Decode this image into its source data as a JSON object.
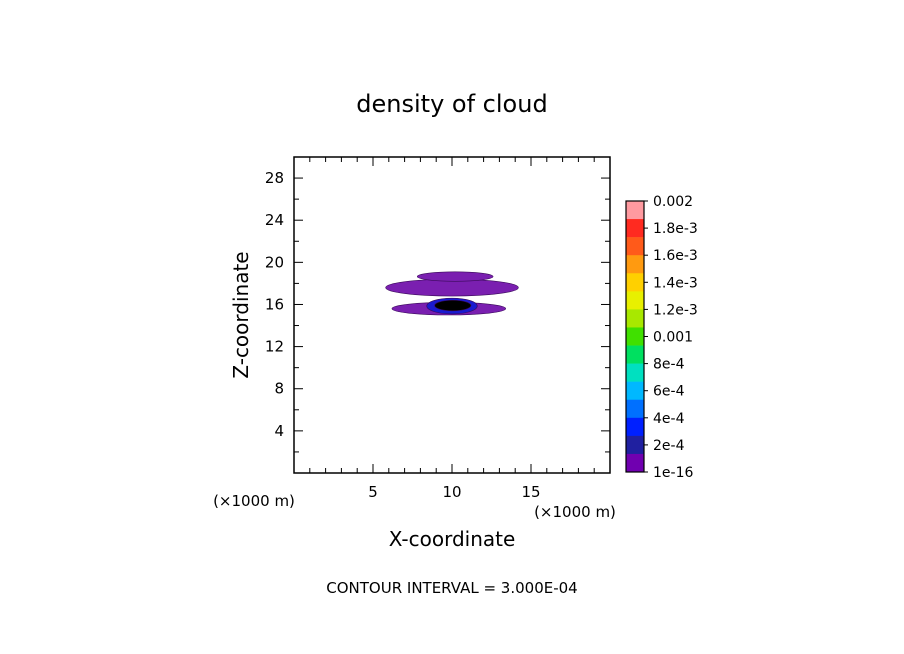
{
  "chart_data": {
    "type": "heatmap",
    "title": "density of cloud",
    "xlabel": "X-coordinate",
    "ylabel": "Z-coordinate",
    "x_unit_label": "(×1000 m)",
    "y_unit_label": "(×1000 m)",
    "xlim": [
      0,
      20
    ],
    "ylim": [
      0,
      30
    ],
    "x_ticks": [
      5,
      10,
      15
    ],
    "y_ticks": [
      4,
      8,
      12,
      16,
      20,
      24,
      28
    ],
    "footer": "CONTOUR INTERVAL = 3.000E-04",
    "colorbar": {
      "labels": [
        "0.002",
        "1.8e-3",
        "1.6e-3",
        "1.4e-3",
        "1.2e-3",
        "0.001",
        "8e-4",
        "6e-4",
        "4e-4",
        "2e-4",
        "1e-16"
      ],
      "colors": [
        "#ff9aa0",
        "#ff2a20",
        "#ff5a1a",
        "#ff9a10",
        "#ffd000",
        "#e8f000",
        "#a8e800",
        "#40e000",
        "#00e060",
        "#00e0c0",
        "#00b8ff",
        "#0070ff",
        "#0020ff",
        "#2020a0",
        "#7000b0"
      ]
    },
    "regions": [
      {
        "level": "1e-16",
        "color": "#7a1fb0",
        "x": [
          5.8,
          14.2
        ],
        "z": [
          16.8,
          18.4
        ]
      },
      {
        "level": "1e-16",
        "color": "#7a1fb0",
        "x": [
          7.8,
          12.6
        ],
        "z": [
          18.2,
          19.1
        ]
      },
      {
        "level": "1e-16",
        "color": "#7a1fb0",
        "x": [
          6.2,
          13.4
        ],
        "z": [
          15.0,
          16.2
        ]
      },
      {
        "level": "2e-4",
        "color": "#1a1ad0",
        "x": [
          8.4,
          11.6
        ],
        "z": [
          15.1,
          16.6
        ]
      },
      {
        "level": "4e-4",
        "color": "#000000",
        "x": [
          8.9,
          11.2
        ],
        "z": [
          15.4,
          16.4
        ]
      }
    ]
  }
}
